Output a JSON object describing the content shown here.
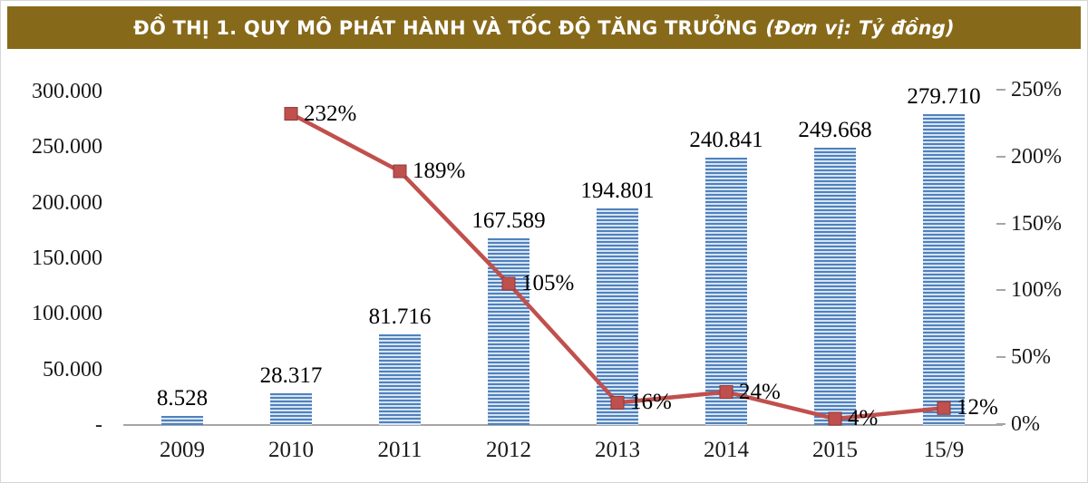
{
  "header": {
    "title": "ĐỒ THỊ 1. QUY MÔ PHÁT HÀNH VÀ TỐC ĐỘ TĂNG TRƯỞNG",
    "subtitle": "(Đơn vị: Tỷ đồng)",
    "bg_color": "#87691a",
    "text_color": "#ffffff"
  },
  "chart_data": {
    "type": "bar",
    "subtype": "bar+line combo, dual axis",
    "title": "ĐỒ THỊ 1. QUY MÔ PHÁT HÀNH VÀ TỐC ĐỘ TĂNG TRƯỞNG (Đơn vị: Tỷ đồng)",
    "categories": [
      "2009",
      "2010",
      "2011",
      "2012",
      "2013",
      "2014",
      "2015",
      "15/9"
    ],
    "series": [
      {
        "name": "Quy mô phát hành",
        "type": "bar",
        "axis": "left",
        "color": "#4f81bd",
        "values": [
          8528,
          28317,
          81716,
          167589,
          194801,
          240841,
          249668,
          279710
        ],
        "labels": [
          "8.528",
          "28.317",
          "81.716",
          "167.589",
          "194.801",
          "240.841",
          "249.668",
          "279.710"
        ]
      },
      {
        "name": "Tốc độ tăng trưởng",
        "type": "line",
        "axis": "right",
        "color": "#c0504d",
        "values": [
          null,
          232,
          189,
          105,
          16,
          24,
          4,
          12
        ],
        "labels": [
          "",
          "232%",
          "189%",
          "105%",
          "16%",
          "24%",
          "4%",
          "12%"
        ]
      }
    ],
    "left_axis": {
      "min": 0,
      "max": 300000,
      "ticks": [
        "300.000",
        "250.000",
        "200.000",
        "150.000",
        "100.000",
        "50.000",
        "-"
      ]
    },
    "right_axis": {
      "min": 0,
      "max": 250,
      "ticks": [
        "250%",
        "200%",
        "150%",
        "100%",
        "50%",
        "0%"
      ]
    },
    "grid": false,
    "legend": "none"
  }
}
